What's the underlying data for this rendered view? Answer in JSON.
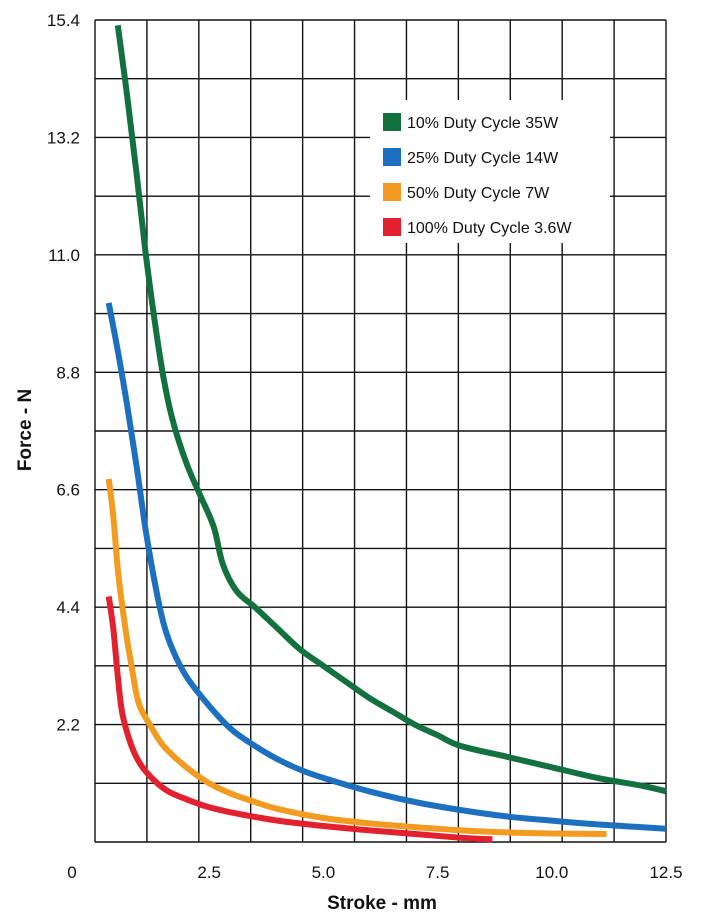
{
  "chart_data": {
    "type": "line",
    "title": "",
    "xlabel": "Stroke - mm",
    "ylabel": "Force - N",
    "xlim": [
      0,
      12.5
    ],
    "ylim": [
      0,
      15.4
    ],
    "x_ticks": [
      "0",
      "2.5",
      "5.0",
      "7.5",
      "10.0",
      "12.5"
    ],
    "y_ticks": [
      "2.2",
      "4.4",
      "6.6",
      "8.8",
      "11.0",
      "13.2",
      "15.4"
    ],
    "grid": true,
    "legend_position": "top-right",
    "series": [
      {
        "name": "10% Duty Cycle 35W",
        "color": "#12713f",
        "points": [
          [
            0.5,
            15.3
          ],
          [
            0.7,
            14.0
          ],
          [
            0.9,
            12.6
          ],
          [
            1.1,
            11.1
          ],
          [
            1.3,
            9.8
          ],
          [
            1.5,
            8.7
          ],
          [
            1.7,
            7.9
          ],
          [
            2.0,
            7.1
          ],
          [
            2.3,
            6.5
          ],
          [
            2.6,
            5.9
          ],
          [
            2.8,
            5.2
          ],
          [
            3.1,
            4.7
          ],
          [
            3.5,
            4.4
          ],
          [
            4.0,
            4.0
          ],
          [
            4.5,
            3.6
          ],
          [
            5.0,
            3.3
          ],
          [
            5.5,
            3.0
          ],
          [
            6.0,
            2.7
          ],
          [
            6.5,
            2.45
          ],
          [
            7.0,
            2.2
          ],
          [
            7.5,
            2.0
          ],
          [
            8.0,
            1.8
          ],
          [
            9.0,
            1.6
          ],
          [
            10.0,
            1.4
          ],
          [
            11.0,
            1.2
          ],
          [
            12.0,
            1.05
          ],
          [
            12.5,
            0.95
          ]
        ]
      },
      {
        "name": "25% Duty Cycle 14W",
        "color": "#1d6fbf",
        "points": [
          [
            0.3,
            10.1
          ],
          [
            0.5,
            9.2
          ],
          [
            0.7,
            8.2
          ],
          [
            0.9,
            7.1
          ],
          [
            1.1,
            5.9
          ],
          [
            1.3,
            4.9
          ],
          [
            1.5,
            4.1
          ],
          [
            1.7,
            3.6
          ],
          [
            2.0,
            3.1
          ],
          [
            2.5,
            2.55
          ],
          [
            3.0,
            2.1
          ],
          [
            3.5,
            1.8
          ],
          [
            4.0,
            1.55
          ],
          [
            4.5,
            1.35
          ],
          [
            5.0,
            1.2
          ],
          [
            6.0,
            0.95
          ],
          [
            7.0,
            0.75
          ],
          [
            8.0,
            0.6
          ],
          [
            9.0,
            0.48
          ],
          [
            10.0,
            0.4
          ],
          [
            11.0,
            0.33
          ],
          [
            12.5,
            0.25
          ]
        ]
      },
      {
        "name": "50% Duty Cycle 7W",
        "color": "#f39a21",
        "points": [
          [
            0.3,
            6.8
          ],
          [
            0.4,
            6.1
          ],
          [
            0.5,
            5.1
          ],
          [
            0.6,
            4.4
          ],
          [
            0.7,
            3.8
          ],
          [
            0.8,
            3.3
          ],
          [
            0.9,
            2.8
          ],
          [
            1.0,
            2.5
          ],
          [
            1.2,
            2.2
          ],
          [
            1.5,
            1.8
          ],
          [
            2.0,
            1.4
          ],
          [
            2.5,
            1.1
          ],
          [
            3.0,
            0.9
          ],
          [
            3.5,
            0.75
          ],
          [
            4.0,
            0.62
          ],
          [
            5.0,
            0.45
          ],
          [
            6.0,
            0.35
          ],
          [
            7.0,
            0.28
          ],
          [
            8.0,
            0.22
          ],
          [
            9.0,
            0.18
          ],
          [
            10.0,
            0.16
          ],
          [
            11.2,
            0.15
          ]
        ]
      },
      {
        "name": "100% Duty Cycle 3.6W",
        "color": "#e3202e",
        "points": [
          [
            0.3,
            4.6
          ],
          [
            0.4,
            4.0
          ],
          [
            0.5,
            3.1
          ],
          [
            0.6,
            2.4
          ],
          [
            0.8,
            1.8
          ],
          [
            1.0,
            1.45
          ],
          [
            1.3,
            1.15
          ],
          [
            1.6,
            0.95
          ],
          [
            2.0,
            0.8
          ],
          [
            2.5,
            0.65
          ],
          [
            3.0,
            0.55
          ],
          [
            3.5,
            0.47
          ],
          [
            4.0,
            0.4
          ],
          [
            5.0,
            0.3
          ],
          [
            6.0,
            0.22
          ],
          [
            7.0,
            0.15
          ],
          [
            8.0,
            0.08
          ],
          [
            8.7,
            0.05
          ]
        ]
      }
    ]
  }
}
